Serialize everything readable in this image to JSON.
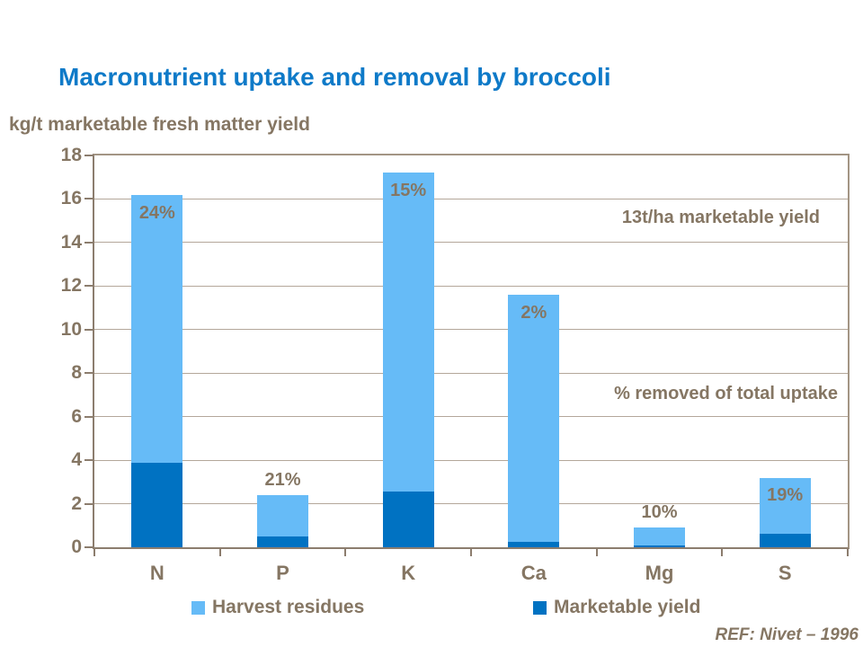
{
  "title": "Macronutrient uptake and removal by broccoli",
  "y_axis_label": "kg/t marketable fresh matter yield",
  "annotations": {
    "yield_note": "13t/ha marketable yield",
    "pct_note": "% removed of total uptake"
  },
  "legend": [
    {
      "label": "Harvest residues",
      "color": "#66bbf7"
    },
    {
      "label": "Marketable yield",
      "color": "#0072c2"
    }
  ],
  "reference": "REF: Nivet – 1996",
  "colors": {
    "title_blue": "#0e7ac8",
    "text_brown": "#857663",
    "light_blue": "#66bbf7",
    "dark_blue": "#0072c2",
    "gridline": "#b4a79a",
    "axis": "#8c7d6e"
  },
  "chart_data": {
    "type": "bar",
    "stacked": true,
    "title": "Macronutrient uptake and removal by broccoli",
    "ylabel": "kg/t marketable fresh matter yield",
    "categories": [
      "N",
      "P",
      "K",
      "Ca",
      "Mg",
      "S"
    ],
    "series": [
      {
        "name": "Marketable yield",
        "color": "#0072c2",
        "values": [
          3.89,
          0.5,
          2.58,
          0.23,
          0.09,
          0.61
        ]
      },
      {
        "name": "Harvest residues",
        "color": "#66bbf7",
        "values": [
          12.31,
          1.9,
          14.62,
          11.37,
          0.81,
          2.59
        ]
      }
    ],
    "totals": [
      16.2,
      2.4,
      17.2,
      11.6,
      0.9,
      3.2
    ],
    "bar_labels": [
      "24%",
      "21%",
      "15%",
      "2%",
      "10%",
      "19%"
    ],
    "ylim": [
      0,
      18
    ],
    "y_ticks": [
      0,
      2,
      4,
      6,
      8,
      10,
      12,
      14,
      16,
      18
    ],
    "grid": true,
    "legend_position": "bottom"
  }
}
